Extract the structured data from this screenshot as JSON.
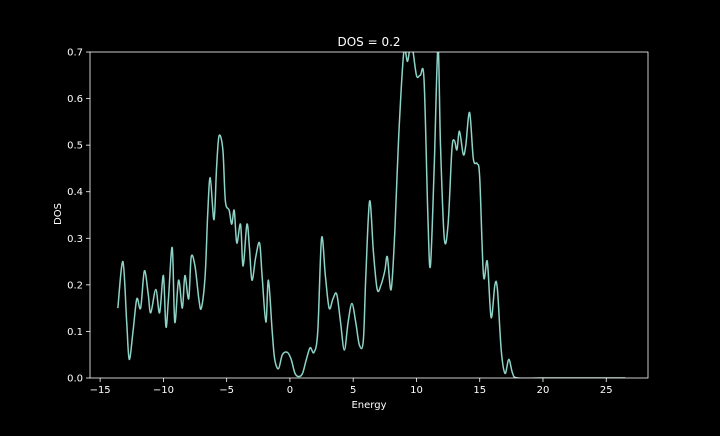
{
  "chart_data": {
    "type": "line",
    "title": "DOS = 0.2",
    "xlabel": "Energy",
    "ylabel": "DOS",
    "xlim": [
      -15.8,
      28.3
    ],
    "ylim": [
      0.0,
      0.7
    ],
    "x_ticks": [
      -15,
      -10,
      -5,
      0,
      5,
      10,
      15,
      20,
      25
    ],
    "x_tick_labels": [
      "−15",
      "−10",
      "−5",
      "0",
      "5",
      "10",
      "15",
      "20",
      "25"
    ],
    "y_ticks": [
      0.0,
      0.1,
      0.2,
      0.3,
      0.4,
      0.5,
      0.6,
      0.7
    ],
    "y_tick_labels": [
      "0.0",
      "0.1",
      "0.2",
      "0.3",
      "0.4",
      "0.5",
      "0.6",
      "0.7"
    ],
    "grid": false,
    "legend": "none",
    "colors": {
      "background": "#000000",
      "axes": "#ffffff",
      "line": "#8dd3c7"
    },
    "series": [
      {
        "points": [
          [
            -13.6,
            0.15
          ],
          [
            -13.2,
            0.25
          ],
          [
            -12.9,
            0.12
          ],
          [
            -12.7,
            0.04
          ],
          [
            -12.4,
            0.1
          ],
          [
            -12.1,
            0.17
          ],
          [
            -11.8,
            0.15
          ],
          [
            -11.5,
            0.23
          ],
          [
            -11.2,
            0.18
          ],
          [
            -11.0,
            0.14
          ],
          [
            -10.6,
            0.19
          ],
          [
            -10.3,
            0.14
          ],
          [
            -10.0,
            0.22
          ],
          [
            -9.8,
            0.11
          ],
          [
            -9.6,
            0.17
          ],
          [
            -9.3,
            0.28
          ],
          [
            -9.1,
            0.12
          ],
          [
            -8.8,
            0.21
          ],
          [
            -8.5,
            0.15
          ],
          [
            -8.3,
            0.22
          ],
          [
            -8.0,
            0.17
          ],
          [
            -7.8,
            0.26
          ],
          [
            -7.5,
            0.24
          ],
          [
            -7.2,
            0.17
          ],
          [
            -7.0,
            0.15
          ],
          [
            -6.7,
            0.22
          ],
          [
            -6.5,
            0.35
          ],
          [
            -6.3,
            0.43
          ],
          [
            -6.0,
            0.34
          ],
          [
            -5.8,
            0.45
          ],
          [
            -5.6,
            0.52
          ],
          [
            -5.3,
            0.49
          ],
          [
            -5.1,
            0.38
          ],
          [
            -4.8,
            0.36
          ],
          [
            -4.6,
            0.33
          ],
          [
            -4.4,
            0.36
          ],
          [
            -4.2,
            0.29
          ],
          [
            -3.9,
            0.33
          ],
          [
            -3.7,
            0.24
          ],
          [
            -3.4,
            0.33
          ],
          [
            -3.2,
            0.28
          ],
          [
            -3.0,
            0.21
          ],
          [
            -2.7,
            0.26
          ],
          [
            -2.4,
            0.29
          ],
          [
            -2.2,
            0.22
          ],
          [
            -1.9,
            0.12
          ],
          [
            -1.7,
            0.21
          ],
          [
            -1.4,
            0.1
          ],
          [
            -1.2,
            0.04
          ],
          [
            -0.9,
            0.02
          ],
          [
            -0.6,
            0.05
          ],
          [
            -0.2,
            0.055
          ],
          [
            0.1,
            0.04
          ],
          [
            0.4,
            0.01
          ],
          [
            0.7,
            0.003
          ],
          [
            1.0,
            0.01
          ],
          [
            1.3,
            0.04
          ],
          [
            1.6,
            0.065
          ],
          [
            1.9,
            0.055
          ],
          [
            2.2,
            0.1
          ],
          [
            2.5,
            0.3
          ],
          [
            2.8,
            0.22
          ],
          [
            3.1,
            0.15
          ],
          [
            3.4,
            0.17
          ],
          [
            3.7,
            0.18
          ],
          [
            4.0,
            0.12
          ],
          [
            4.3,
            0.06
          ],
          [
            4.6,
            0.12
          ],
          [
            4.9,
            0.16
          ],
          [
            5.2,
            0.12
          ],
          [
            5.5,
            0.07
          ],
          [
            5.8,
            0.08
          ],
          [
            6.0,
            0.22
          ],
          [
            6.3,
            0.38
          ],
          [
            6.6,
            0.27
          ],
          [
            6.9,
            0.19
          ],
          [
            7.2,
            0.2
          ],
          [
            7.5,
            0.23
          ],
          [
            7.7,
            0.26
          ],
          [
            8.0,
            0.19
          ],
          [
            8.3,
            0.32
          ],
          [
            8.6,
            0.52
          ],
          [
            9.0,
            0.7
          ],
          [
            9.3,
            0.68
          ],
          [
            9.6,
            0.72
          ],
          [
            10.0,
            0.65
          ],
          [
            10.3,
            0.65
          ],
          [
            10.6,
            0.64
          ],
          [
            10.9,
            0.35
          ],
          [
            11.1,
            0.24
          ],
          [
            11.4,
            0.45
          ],
          [
            11.7,
            0.71
          ],
          [
            11.9,
            0.5
          ],
          [
            12.2,
            0.3
          ],
          [
            12.5,
            0.33
          ],
          [
            12.8,
            0.49
          ],
          [
            13.0,
            0.51
          ],
          [
            13.2,
            0.49
          ],
          [
            13.4,
            0.53
          ],
          [
            13.7,
            0.48
          ],
          [
            13.9,
            0.5
          ],
          [
            14.2,
            0.57
          ],
          [
            14.5,
            0.47
          ],
          [
            14.8,
            0.46
          ],
          [
            15.0,
            0.43
          ],
          [
            15.3,
            0.22
          ],
          [
            15.6,
            0.25
          ],
          [
            15.9,
            0.13
          ],
          [
            16.2,
            0.2
          ],
          [
            16.4,
            0.19
          ],
          [
            16.7,
            0.06
          ],
          [
            17.0,
            0.01
          ],
          [
            17.3,
            0.04
          ],
          [
            17.6,
            0.01
          ],
          [
            18.0,
            0.0
          ],
          [
            20.0,
            0.0
          ],
          [
            23.0,
            0.0
          ],
          [
            26.5,
            0.0
          ]
        ]
      }
    ]
  }
}
